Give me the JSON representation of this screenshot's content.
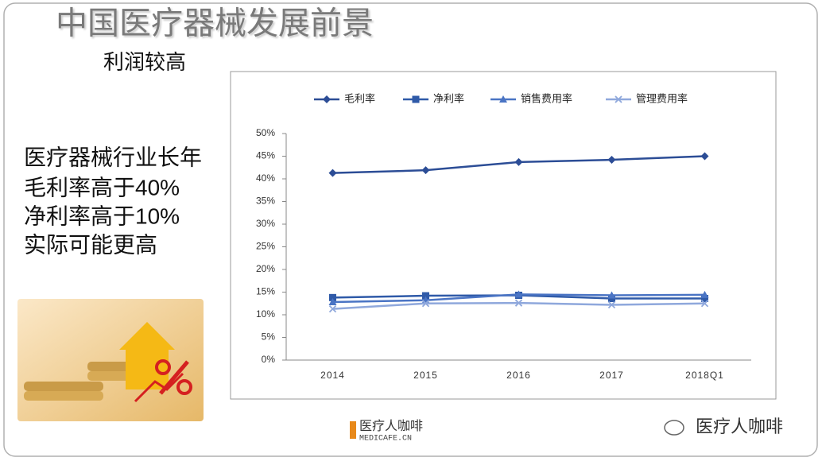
{
  "title": "中国医疗器械发展前景",
  "subtitle": "利润较高",
  "body_lines": [
    "医疗器械行业长年",
    "毛利率高于40%",
    "净利率高于10%",
    "实际可能更高"
  ],
  "footer": {
    "logo": "医疗人咖啡",
    "logo_sub": "MEDICAFE.CN",
    "watermark": "医疗人咖啡"
  },
  "chart_data": {
    "type": "line",
    "categories": [
      "2014",
      "2015",
      "2016",
      "2017",
      "2018Q1"
    ],
    "series": [
      {
        "name": "毛利率",
        "color": "#2c4d96",
        "marker": "diamond",
        "values": [
          41.3,
          41.9,
          43.7,
          44.2,
          45.0
        ]
      },
      {
        "name": "净利率",
        "color": "#2f5aa8",
        "marker": "square",
        "values": [
          13.8,
          14.2,
          14.3,
          13.6,
          13.6
        ]
      },
      {
        "name": "销售费用率",
        "color": "#4a74c4",
        "marker": "triangle",
        "values": [
          12.8,
          13.2,
          14.5,
          14.3,
          14.4
        ]
      },
      {
        "name": "管理费用率",
        "color": "#8fa8dc",
        "marker": "x",
        "values": [
          11.3,
          12.5,
          12.6,
          12.2,
          12.5
        ]
      }
    ],
    "ylim": [
      0,
      50
    ],
    "yticks": [
      {
        "value": 0,
        "label": "0%"
      },
      {
        "value": 5,
        "label": "5%"
      },
      {
        "value": 10,
        "label": "10%"
      },
      {
        "value": 15,
        "label": "15%"
      },
      {
        "value": 20,
        "label": "20%"
      },
      {
        "value": 25,
        "label": "25%"
      },
      {
        "value": 30,
        "label": "30%"
      },
      {
        "value": 35,
        "label": "35%"
      },
      {
        "value": 40,
        "label": "40%"
      },
      {
        "value": 45,
        "label": "45%"
      },
      {
        "value": 50,
        "label": "50%"
      }
    ],
    "legend": "top"
  }
}
